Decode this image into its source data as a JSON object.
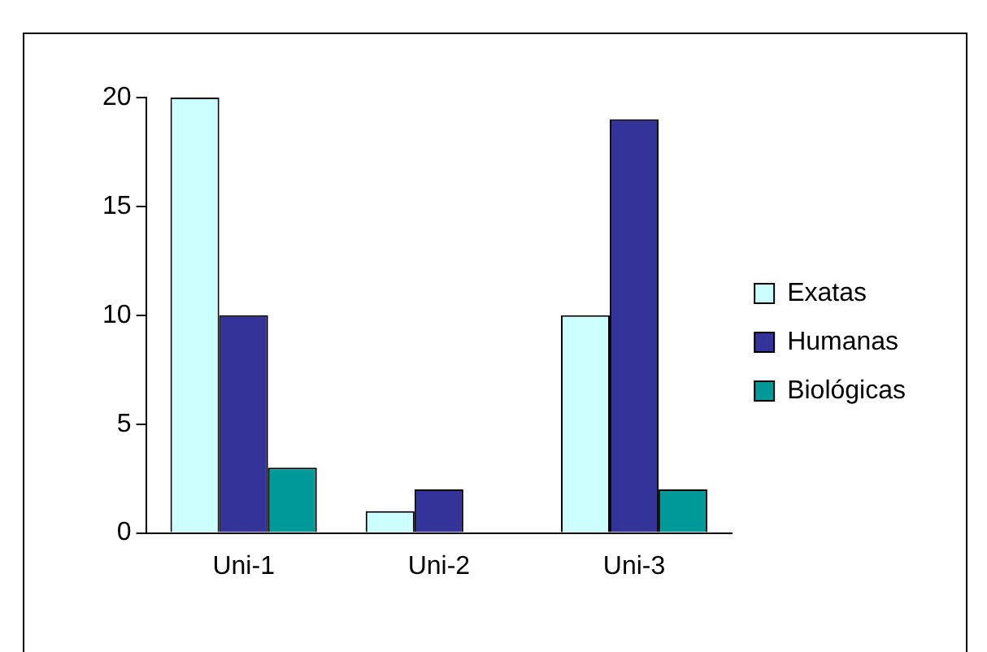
{
  "chart_data": {
    "type": "bar",
    "categories": [
      "Uni-1",
      "Uni-2",
      "Uni-3"
    ],
    "series": [
      {
        "name": "Exatas",
        "color": "#ccffff",
        "values": [
          20,
          1,
          10
        ]
      },
      {
        "name": "Humanas",
        "color": "#333399",
        "values": [
          10,
          2,
          19
        ]
      },
      {
        "name": "Biológicas",
        "color": "#009999",
        "values": [
          3,
          0,
          2
        ]
      }
    ],
    "ylim": [
      0,
      20
    ],
    "yticks": [
      0,
      5,
      10,
      15,
      20
    ],
    "grid": false,
    "legend": "right"
  }
}
